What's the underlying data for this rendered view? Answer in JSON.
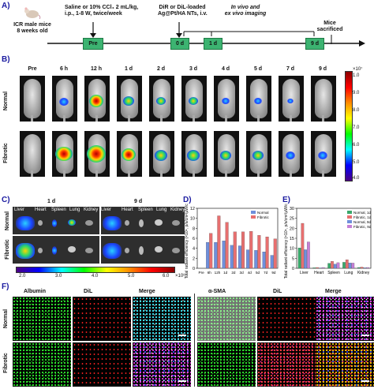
{
  "panelA": {
    "letter": "A)",
    "mice_label_1": "ICR male mice",
    "mice_label_2": "8 weeks old",
    "treatment_1": "Saline or 10% CCl₄ 2 mL/kg,",
    "treatment_2": "i.p., 1-8 W, twice/week",
    "inject_1": "DiR or DiL-loaded",
    "inject_2": "Ag@Pt/HA NTs, i.v.",
    "imaging_1": "In vivo and",
    "imaging_2": "ex vivo imaging",
    "sacrifice_1": "Mice",
    "sacrifice_2": "sacrificed",
    "box_pre": "Pre",
    "box_0d": "0 d",
    "box_1d": "1 d",
    "box_9d": "9 d"
  },
  "panelB": {
    "letter": "B)",
    "timepoints": [
      "Pre",
      "6 h",
      "12 h",
      "1 d",
      "2 d",
      "3 d",
      "4 d",
      "5 d",
      "7 d",
      "9 d"
    ],
    "row_normal": "Normal",
    "row_fibrotic": "Fibrotic",
    "scale_max": "1.0",
    "scale_min": "4.0",
    "scale_exp": "×10⁷",
    "scale_ticks": [
      "1.0",
      "9.0",
      "8.0",
      "7.0",
      "6.0",
      "5.0",
      "4.0"
    ]
  },
  "panelC": {
    "letter": "C)",
    "day1": "1 d",
    "day9": "9 d",
    "organs": [
      "Liver",
      "Heart",
      "Spleen",
      "Lung",
      "Kidney"
    ],
    "row_normal": "Normal",
    "row_fibrotic": "Fibrotic",
    "bar_ticks": [
      "2.0",
      "3.0",
      "4.0",
      "5.0",
      "6.0"
    ],
    "bar_exp": "×10⁸"
  },
  "chart_data": [
    {
      "panel": "D)",
      "type": "bar",
      "ylabel": "Total radiant efficiency (×10⁹, p/s/cm²/μW/cm²)",
      "categories": [
        "Pre",
        "6h",
        "12h",
        "1d",
        "2d",
        "3d",
        "4d",
        "5d",
        "7d",
        "9d"
      ],
      "series": [
        {
          "name": "Normal",
          "color": "#6f8fdc",
          "values": [
            0,
            5.2,
            5.2,
            5.5,
            4.6,
            4.5,
            3.7,
            3.6,
            3.3,
            2.6
          ]
        },
        {
          "name": "Fibrotic",
          "color": "#e76f6f",
          "values": [
            0,
            7.0,
            10.5,
            9.2,
            7.3,
            7.3,
            7.4,
            6.6,
            6.3,
            5.9
          ]
        }
      ],
      "ylim": [
        0,
        12
      ],
      "yticks": [
        0,
        2,
        4,
        6,
        8,
        10,
        12
      ]
    },
    {
      "panel": "E)",
      "type": "bar",
      "ylabel": "Total radiant efficiency (×10⁹, p/s/cm²/μW/cm²)",
      "categories": [
        "Liver",
        "Heart",
        "Spleen",
        "Lung",
        "Kidney"
      ],
      "series": [
        {
          "name": "Normal, 1d",
          "color": "#3aa86b",
          "values": [
            10.2,
            0.3,
            2.5,
            3.0,
            0.4
          ]
        },
        {
          "name": "Fibrotic, 1d",
          "color": "#e76f6f",
          "values": [
            22.5,
            0.4,
            3.5,
            4.3,
            0.6
          ]
        },
        {
          "name": "Normal, 9d",
          "color": "#6f8fdc",
          "values": [
            9.3,
            0.2,
            2.1,
            2.7,
            0.3
          ]
        },
        {
          "name": "Fibrotic, 9d",
          "color": "#c57fd6",
          "values": [
            13.2,
            0.4,
            2.8,
            2.6,
            0.4
          ]
        }
      ],
      "ylim": [
        0,
        30
      ],
      "yticks": [
        0,
        5,
        10,
        15,
        20,
        25,
        30
      ]
    }
  ],
  "panelF": {
    "letter": "F)",
    "col_albumin": "Albumin",
    "col_dil_1": "DiL",
    "col_merge_1": "Merge",
    "col_sma": "α-SMA",
    "col_dil_2": "DiL",
    "col_merge_2": "Merge",
    "row_normal": "Normal",
    "row_fibrotic": "Fibrotic"
  }
}
